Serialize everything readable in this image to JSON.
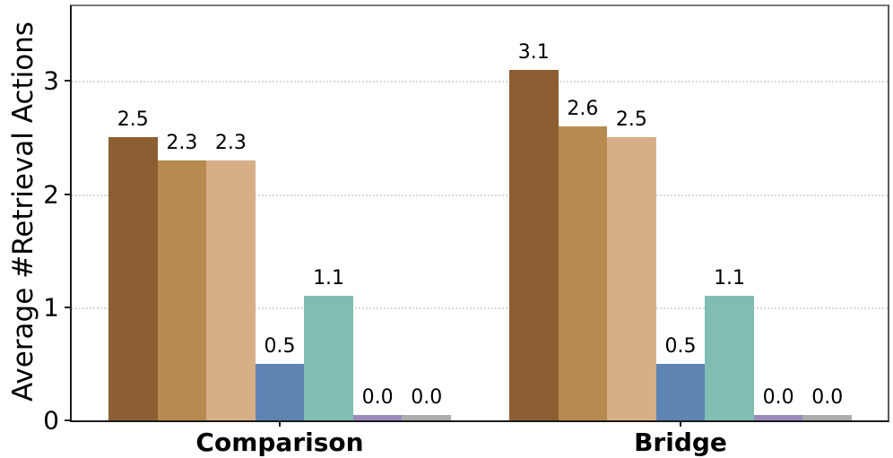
{
  "chart_data": {
    "type": "bar",
    "title": "",
    "ylabel": "Average #Retrieval Actions",
    "xlabel": "",
    "categories": [
      "Comparison",
      "Bridge"
    ],
    "series": [
      {
        "name": "series-1-dark-brown",
        "color": "#8C5F32",
        "values": [
          2.5,
          3.1
        ],
        "labels": [
          "2.5",
          "3.1"
        ]
      },
      {
        "name": "series-2-medium-brown",
        "color": "#B78B4F",
        "values": [
          2.3,
          2.6
        ],
        "labels": [
          "2.3",
          "2.6"
        ]
      },
      {
        "name": "series-3-light-tan",
        "color": "#D7AF87",
        "values": [
          2.3,
          2.5
        ],
        "labels": [
          "2.3",
          "2.5"
        ]
      },
      {
        "name": "series-4-blue",
        "color": "#5D84B2",
        "values": [
          0.5,
          0.5
        ],
        "labels": [
          "0.5",
          "0.5"
        ]
      },
      {
        "name": "series-5-teal",
        "color": "#82BDB4",
        "values": [
          1.1,
          1.1
        ],
        "labels": [
          "1.1",
          "1.1"
        ]
      },
      {
        "name": "series-6-purple",
        "color": "#9C89BE",
        "values": [
          0.0,
          0.0
        ],
        "labels": [
          "0.0",
          "0.0"
        ]
      },
      {
        "name": "series-7-gray",
        "color": "#ACACAC",
        "values": [
          0.0,
          0.0
        ],
        "labels": [
          "0.0",
          "0.0"
        ]
      }
    ],
    "yticks": [
      "0",
      "1",
      "2",
      "3"
    ],
    "ytick_values": [
      0,
      1,
      2,
      3
    ],
    "ylim": [
      0,
      3.66
    ],
    "grid": "horizontal-dotted",
    "grid_color": "#d9d9d9",
    "axis_color": "#1a1a1a",
    "background_color": "#ffffff",
    "legend": "none",
    "value_labels_shown": true,
    "zero_bar_sliver_height_units": 0.05
  }
}
